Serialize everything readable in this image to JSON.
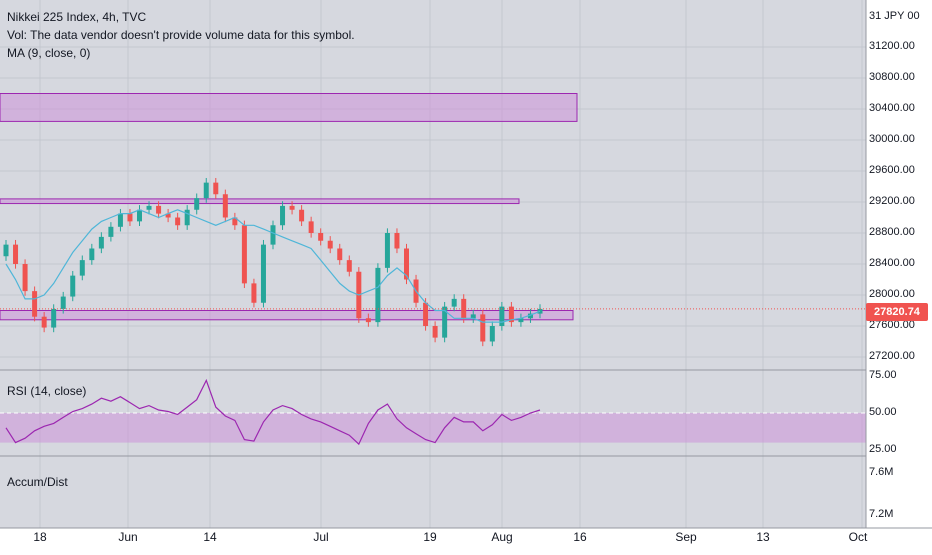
{
  "chart_data": {
    "type": "candlestick",
    "title": "Nikkei 225 Index, 4h, TVC",
    "currency_label": "31 JPY 00",
    "volume_note": "Vol: The data vendor doesn't provide volume data for this symbol.",
    "ma_label": "MA (9, close, 0)",
    "last_price": "27820.74",
    "price_axis": {
      "range": [
        27000,
        31400
      ],
      "ticks": [
        "31200.00",
        "30800.00",
        "30400.00",
        "30000.00",
        "29600.00",
        "29200.00",
        "28800.00",
        "28400.00",
        "28000.00",
        "27600.00",
        "27200.00"
      ]
    },
    "x_axis": {
      "labels": [
        "18",
        "Jun",
        "14",
        "Jul",
        "19",
        "Aug",
        "16",
        "Sep",
        "13",
        "Oct"
      ]
    },
    "zones": [
      {
        "low": 30240,
        "high": 30600
      },
      {
        "low": 29180,
        "high": 29240
      },
      {
        "low": 27680,
        "high": 27800
      }
    ],
    "closes": [
      28650,
      28400,
      28050,
      27720,
      27580,
      27820,
      27980,
      28250,
      28450,
      28600,
      28750,
      28880,
      29050,
      28950,
      29100,
      29150,
      29050,
      29000,
      28900,
      29100,
      29250,
      29450,
      29300,
      29000,
      28900,
      28150,
      27900,
      28650,
      28900,
      29150,
      29100,
      28950,
      28800,
      28700,
      28600,
      28450,
      28300,
      27700,
      27650,
      28350,
      28800,
      28600,
      28200,
      27900,
      27600,
      27450,
      27850,
      27950,
      27700,
      27750,
      27400,
      27600,
      27850,
      27650,
      27700,
      27760,
      27820
    ],
    "ma": [
      28400,
      28200,
      27950,
      27950,
      28000,
      28150,
      28350,
      28550,
      28700,
      28850,
      28950,
      29000,
      29050,
      29050,
      29100,
      29050,
      29000,
      29050,
      29100,
      29050,
      29000,
      28950,
      28900,
      28950,
      29000,
      28900,
      28900,
      28850,
      28800,
      28750,
      28700,
      28650,
      28600,
      28450,
      28300,
      28150,
      28050,
      28000,
      28050,
      28100,
      28250,
      28350,
      28250,
      28050,
      27900,
      27800,
      27800,
      27700,
      27700,
      27700,
      27650,
      27650,
      27650,
      27680,
      27700,
      27740,
      27790
    ],
    "rsi": {
      "label": "RSI (14, close)",
      "ticks": [
        "75.00",
        "50.00",
        "25.00"
      ],
      "band": [
        30,
        50
      ],
      "values": [
        40,
        30,
        33,
        38,
        41,
        43,
        47,
        51,
        53,
        56,
        60,
        58,
        61,
        57,
        53,
        55,
        52,
        51,
        49,
        54,
        59,
        72,
        54,
        48,
        45,
        32,
        31,
        44,
        52,
        55,
        53,
        49,
        46,
        44,
        41,
        38,
        35,
        29,
        43,
        52,
        56,
        46,
        40,
        36,
        32,
        30,
        40,
        47,
        44,
        44,
        38,
        42,
        49,
        45,
        47,
        50,
        52
      ]
    },
    "accum": {
      "label": "Accum/Dist",
      "ticks": [
        "7.6M",
        "7.2M"
      ]
    }
  }
}
